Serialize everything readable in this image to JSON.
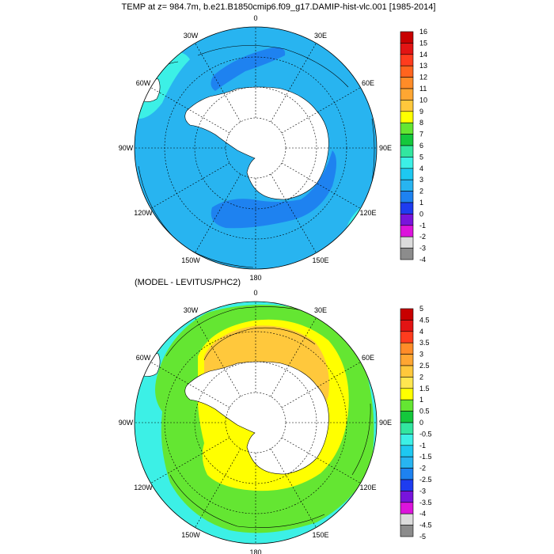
{
  "top_map": {
    "title": "TEMP at z= 984.7m, b.e21.B1850cmip6.f09_g17.DAMIP-hist-vlc.001 [1985-2014]",
    "lon_labels": [
      "0",
      "30E",
      "60E",
      "90E",
      "120E",
      "150E",
      "180",
      "150W",
      "120W",
      "90W",
      "60W",
      "30W"
    ],
    "colorbar": {
      "labels": [
        "16",
        "15",
        "14",
        "13",
        "12",
        "11",
        "10",
        "9",
        "8",
        "7",
        "6",
        "5",
        "4",
        "3",
        "2",
        "1",
        "0",
        "-1",
        "-2",
        "-3",
        "-4"
      ],
      "colors": [
        "#c80000",
        "#e21414",
        "#ff3c1e",
        "#ff641e",
        "#ff8c28",
        "#ffa632",
        "#ffc83c",
        "#ffff00",
        "#64e632",
        "#14c83c",
        "#32e6a0",
        "#3cf0e6",
        "#1ec8f0",
        "#28b4f0",
        "#1e82f0",
        "#1e3cf0",
        "#7814dc",
        "#dc14dc",
        "#dcdcdc",
        "#8c8c8c"
      ]
    },
    "fields": {
      "ocean": "#28b4f0",
      "cold_patch": "#1e82f0",
      "warm_band": "#3cf0e6"
    }
  },
  "bottom_map": {
    "title": "(MODEL - LEVITUS/PHC2)",
    "lon_labels": [
      "0",
      "30E",
      "60E",
      "90E",
      "120E",
      "150E",
      "180",
      "150W",
      "120W",
      "90W",
      "60W",
      "30W"
    ],
    "colorbar": {
      "labels": [
        "5",
        "4.5",
        "4",
        "3.5",
        "3",
        "2.5",
        "2",
        "1.5",
        "1",
        "0.5",
        "0",
        "-0.5",
        "-1",
        "-1.5",
        "-2",
        "-2.5",
        "-3",
        "-3.5",
        "-4",
        "-4.5",
        "-5"
      ],
      "colors": [
        "#c80000",
        "#e21414",
        "#ff3c1e",
        "#ff8c28",
        "#ffa632",
        "#ffc83c",
        "#ffe650",
        "#ffff00",
        "#64e632",
        "#14c83c",
        "#32e6a0",
        "#3cf0e6",
        "#1ec8f0",
        "#28b4f0",
        "#1e82f0",
        "#1e3cf0",
        "#7814dc",
        "#dc14dc",
        "#dcdcdc",
        "#8c8c8c"
      ]
    },
    "fields": {
      "outer": "#3cf0e6",
      "mid": "#64e632",
      "inner": "#ffff00",
      "core": "#ffc83c"
    }
  }
}
